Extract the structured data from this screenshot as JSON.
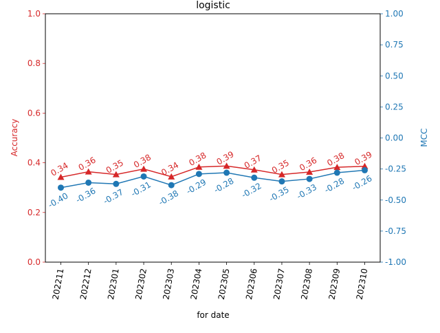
{
  "chart_data": {
    "type": "line",
    "title": "logistic",
    "xlabel": "for date",
    "ylabel": "Accuracy",
    "y2label": "MCC",
    "categories": [
      "202211",
      "202212",
      "202301",
      "202302",
      "202303",
      "202304",
      "202305",
      "202306",
      "202307",
      "202308",
      "202309",
      "202310"
    ],
    "ylim": [
      0,
      1
    ],
    "y2lim": [
      -1,
      1
    ],
    "yticks": [
      "0.0",
      "0.2",
      "0.4",
      "0.6",
      "0.8",
      "1.0"
    ],
    "y2ticks": [
      "-1.00",
      "-0.75",
      "-0.50",
      "-0.25",
      "0.00",
      "0.25",
      "0.50",
      "0.75",
      "1.00"
    ],
    "series": [
      {
        "axis": "left",
        "color": "#d62728",
        "marker": "triangle",
        "values": [
          0.342,
          0.364,
          0.353,
          0.375,
          0.344,
          0.383,
          0.387,
          0.372,
          0.353,
          0.363,
          0.382,
          0.386
        ],
        "labels": [
          "0.34",
          "0.36",
          "0.35",
          "0.38",
          "0.34",
          "0.38",
          "0.39",
          "0.37",
          "0.35",
          "0.36",
          "0.38",
          "0.39"
        ]
      },
      {
        "axis": "right",
        "color": "#1f77b4",
        "marker": "circle",
        "values": [
          -0.4,
          -0.36,
          -0.37,
          -0.31,
          -0.38,
          -0.29,
          -0.28,
          -0.32,
          -0.35,
          -0.33,
          -0.28,
          -0.26
        ],
        "labels": [
          "-0.40",
          "-0.36",
          "-0.37",
          "-0.31",
          "-0.38",
          "-0.29",
          "-0.28",
          "-0.32",
          "-0.35",
          "-0.33",
          "-0.28",
          "-0.26"
        ]
      }
    ],
    "colors": {
      "left_axis": "#d62728",
      "right_axis": "#1f77b4",
      "axis": "#000000"
    }
  }
}
